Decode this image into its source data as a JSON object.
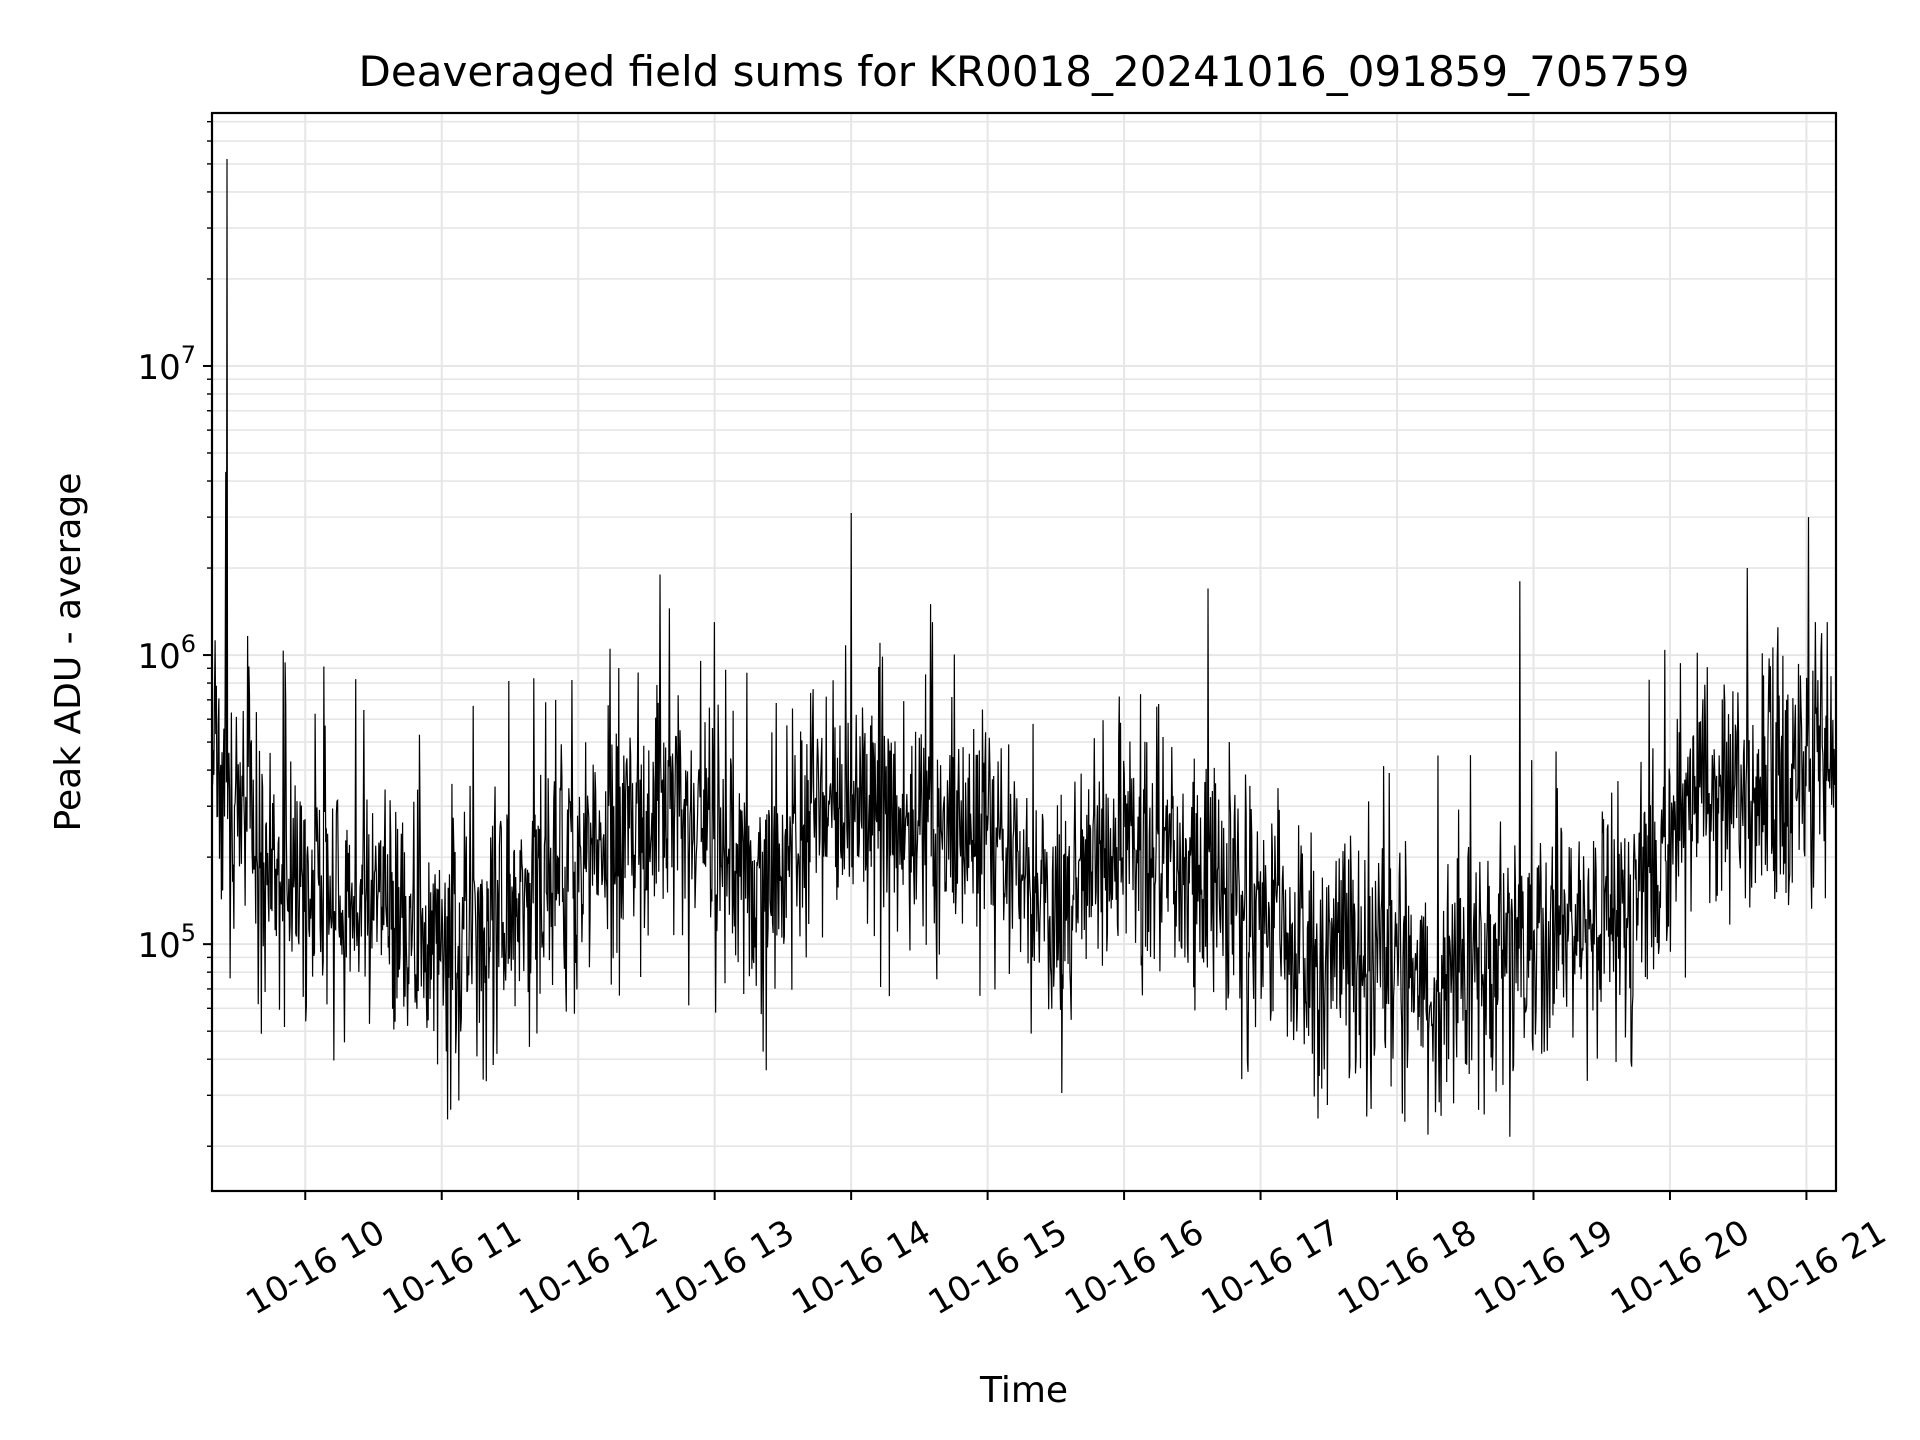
{
  "chart_data": {
    "type": "line",
    "title": "Deaveraged field sums for KR0018_20241016_091859_705759",
    "xlabel": "Time",
    "ylabel": "Peak ADU - average",
    "yscale": "log",
    "ylim": [
      14000,
      75000000
    ],
    "xlim": [
      "2024-10-16T09:19:00",
      "2024-10-16T21:13:00"
    ],
    "x_ticks": [
      {
        "t": "2024-10-16T10:00:00",
        "label": "10-16 10"
      },
      {
        "t": "2024-10-16T11:00:00",
        "label": "10-16 11"
      },
      {
        "t": "2024-10-16T12:00:00",
        "label": "10-16 12"
      },
      {
        "t": "2024-10-16T13:00:00",
        "label": "10-16 13"
      },
      {
        "t": "2024-10-16T14:00:00",
        "label": "10-16 14"
      },
      {
        "t": "2024-10-16T15:00:00",
        "label": "10-16 15"
      },
      {
        "t": "2024-10-16T16:00:00",
        "label": "10-16 16"
      },
      {
        "t": "2024-10-16T17:00:00",
        "label": "10-16 17"
      },
      {
        "t": "2024-10-16T18:00:00",
        "label": "10-16 18"
      },
      {
        "t": "2024-10-16T19:00:00",
        "label": "10-16 19"
      },
      {
        "t": "2024-10-16T20:00:00",
        "label": "10-16 20"
      },
      {
        "t": "2024-10-16T21:00:00",
        "label": "10-16 21"
      }
    ],
    "y_ticks": [
      {
        "value": 100000,
        "base": "10",
        "exp": "5"
      },
      {
        "value": 1000000,
        "base": "10",
        "exp": "6"
      },
      {
        "value": 10000000,
        "base": "10",
        "exp": "7"
      }
    ],
    "grid": true,
    "line_color": "#000000",
    "grid_color": "#e6e6e6",
    "trend": [
      {
        "t": "2024-10-16T09:19:00",
        "y": 450000
      },
      {
        "t": "2024-10-16T09:40:00",
        "y": 200000
      },
      {
        "t": "2024-10-16T10:30:00",
        "y": 140000
      },
      {
        "t": "2024-10-16T11:00:00",
        "y": 100000
      },
      {
        "t": "2024-10-16T11:30:00",
        "y": 150000
      },
      {
        "t": "2024-10-16T12:00:00",
        "y": 200000
      },
      {
        "t": "2024-10-16T12:40:00",
        "y": 300000
      },
      {
        "t": "2024-10-16T13:20:00",
        "y": 150000
      },
      {
        "t": "2024-10-16T13:50:00",
        "y": 350000
      },
      {
        "t": "2024-10-16T14:30:00",
        "y": 250000
      },
      {
        "t": "2024-10-16T15:00:00",
        "y": 250000
      },
      {
        "t": "2024-10-16T15:30:00",
        "y": 120000
      },
      {
        "t": "2024-10-16T16:00:00",
        "y": 250000
      },
      {
        "t": "2024-10-16T17:00:00",
        "y": 120000
      },
      {
        "t": "2024-10-16T18:00:00",
        "y": 80000
      },
      {
        "t": "2024-10-16T19:00:00",
        "y": 90000
      },
      {
        "t": "2024-10-16T19:40:00",
        "y": 150000
      },
      {
        "t": "2024-10-16T20:10:00",
        "y": 300000
      },
      {
        "t": "2024-10-16T21:13:00",
        "y": 450000
      }
    ],
    "spikes": [
      {
        "t": "2024-10-16T09:25:30",
        "y": 52000000
      },
      {
        "t": "2024-10-16T09:25:00",
        "y": 4300000
      },
      {
        "t": "2024-10-16T14:00:00",
        "y": 3100000
      },
      {
        "t": "2024-10-16T21:01:00",
        "y": 3000000
      },
      {
        "t": "2024-10-16T20:34:00",
        "y": 2000000
      },
      {
        "t": "2024-10-16T12:36:00",
        "y": 1900000
      },
      {
        "t": "2024-10-16T18:54:00",
        "y": 1800000
      },
      {
        "t": "2024-10-16T16:37:00",
        "y": 1700000
      },
      {
        "t": "2024-10-16T12:40:00",
        "y": 1450000
      },
      {
        "t": "2024-10-16T13:00:00",
        "y": 1300000
      },
      {
        "t": "2024-10-16T14:35:00",
        "y": 1500000
      }
    ]
  }
}
